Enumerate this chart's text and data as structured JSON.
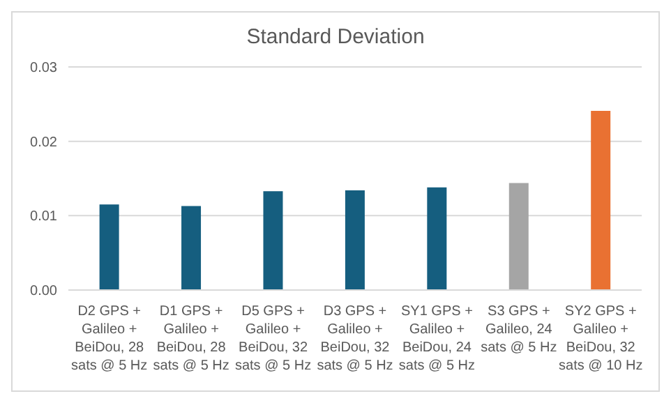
{
  "chart_data": {
    "type": "bar",
    "title": "Standard Deviation",
    "categories": [
      "D2 GPS + Galileo + BeiDou, 28 sats @ 5 Hz",
      "D1 GPS + Galileo + BeiDou, 28 sats @ 5 Hz",
      "D5 GPS + Galileo + BeiDou, 32 sats @ 5 Hz",
      "D3 GPS + Galileo + BeiDou, 32 sats @ 5 Hz",
      "SY1 GPS + Galileo + BeiDou, 24 sats @ 5 Hz",
      "S3 GPS + Galileo, 24 sats @ 5 Hz",
      "SY2 GPS + Galileo + BeiDou, 32 sats @ 10 Hz"
    ],
    "values": [
      0.0115,
      0.0113,
      0.0133,
      0.0134,
      0.0138,
      0.0144,
      0.0241
    ],
    "colors": [
      "#155e7f",
      "#155e7f",
      "#155e7f",
      "#155e7f",
      "#155e7f",
      "#a5a5a5",
      "#e97132"
    ],
    "ylim": [
      0,
      0.03
    ],
    "yticks": [
      {
        "value": 0,
        "label": "0.00"
      },
      {
        "value": 0.01,
        "label": "0.01"
      },
      {
        "value": 0.02,
        "label": "0.02"
      },
      {
        "value": 0.03,
        "label": "0.03"
      }
    ],
    "grid": "y"
  }
}
